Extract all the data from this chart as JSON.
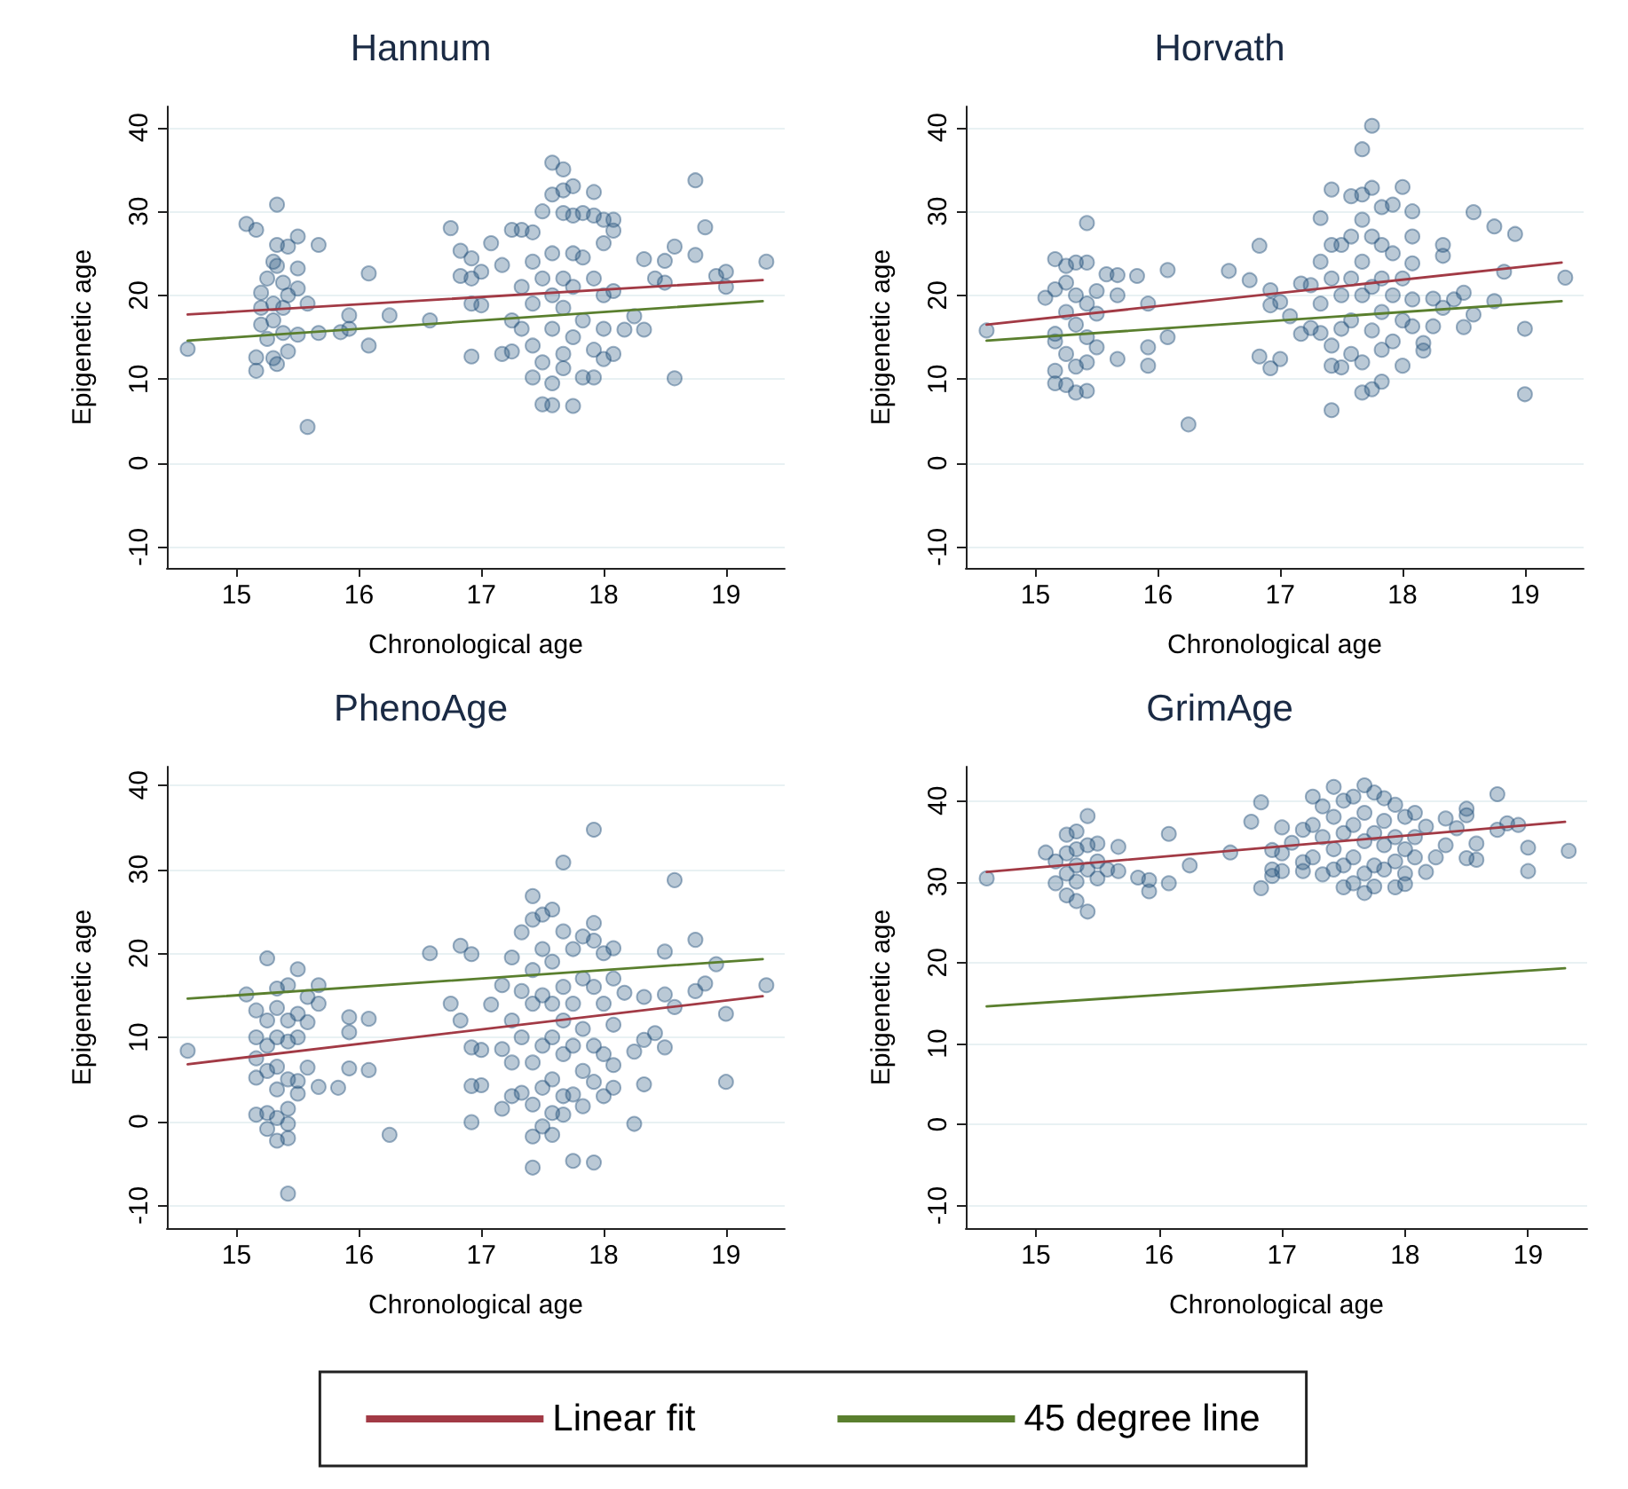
{
  "chart_data": [
    {
      "type": "scatter",
      "title": "Hannum",
      "xlabel": "Chronological age",
      "ylabel": "Epigenetic age",
      "xlim": [
        14.43,
        19.48
      ],
      "xticks": [
        15,
        16,
        17,
        18,
        19
      ],
      "ylim": [
        -12.5,
        42.5
      ],
      "yticks": [
        -10,
        0,
        10,
        20,
        30,
        40
      ],
      "grid": "y",
      "line_style": "solid",
      "series": [
        {
          "marker": "circle",
          "color": "#1f4e79",
          "x": [
            14.6,
            15.08,
            15.16,
            15.16,
            15.16,
            15.2,
            15.2,
            15.2,
            15.25,
            15.25,
            15.3,
            15.3,
            15.3,
            15.3,
            15.33,
            15.33,
            15.33,
            15.33,
            15.38,
            15.38,
            15.38,
            15.42,
            15.42,
            15.42,
            15.5,
            15.5,
            15.5,
            15.5,
            15.58,
            15.58,
            15.67,
            15.67,
            15.85,
            15.92,
            15.92,
            16.08,
            16.08,
            16.25,
            16.58,
            16.75,
            16.83,
            16.83,
            16.92,
            16.92,
            16.92,
            16.92,
            17.0,
            17.0,
            17.08,
            17.17,
            17.17,
            17.25,
            17.25,
            17.25,
            17.33,
            17.33,
            17.33,
            17.42,
            17.42,
            17.42,
            17.42,
            17.42,
            17.5,
            17.5,
            17.5,
            17.5,
            17.58,
            17.58,
            17.58,
            17.58,
            17.58,
            17.58,
            17.58,
            17.67,
            17.67,
            17.67,
            17.67,
            17.67,
            17.67,
            17.67,
            17.75,
            17.75,
            17.75,
            17.75,
            17.75,
            17.75,
            17.83,
            17.83,
            17.83,
            17.83,
            17.92,
            17.92,
            17.92,
            17.92,
            17.92,
            18.0,
            18.0,
            18.0,
            18.0,
            18.0,
            18.08,
            18.08,
            18.08,
            18.08,
            18.17,
            18.25,
            18.33,
            18.33,
            18.42,
            18.5,
            18.5,
            18.58,
            18.58,
            18.75,
            18.75,
            18.83,
            18.92,
            19.0,
            19.0,
            19.33
          ],
          "values": [
            13.6,
            28.5,
            27.8,
            11,
            12.6,
            20.3,
            18.5,
            16.5,
            22,
            14.8,
            24,
            19,
            17,
            12.5,
            30.8,
            26,
            23.5,
            11.8,
            21.5,
            18.5,
            15.5,
            25.8,
            20,
            13.3,
            27,
            23.2,
            20.8,
            15.3,
            4.3,
            19,
            26,
            15.5,
            15.6,
            17.6,
            16,
            22.6,
            14,
            17.6,
            17,
            28,
            25.3,
            22.3,
            24.4,
            22,
            12.7,
            19,
            22.8,
            18.8,
            26.2,
            13,
            23.6,
            27.8,
            17,
            13.3,
            27.8,
            21,
            16,
            27.5,
            24,
            19,
            14,
            10.2,
            30,
            22,
            7,
            12,
            35.8,
            32,
            25,
            20,
            16,
            9.5,
            6.9,
            35,
            32.5,
            29.8,
            22,
            18.5,
            13,
            11.3,
            33,
            29.5,
            25,
            21,
            15,
            6.8,
            29.8,
            24.5,
            17,
            10.2,
            32.3,
            29.5,
            22,
            13.5,
            10.2,
            29,
            26.2,
            20,
            16,
            12.4,
            29,
            27.7,
            20.5,
            13,
            15.9,
            17.5,
            24.3,
            15.9,
            22,
            24.1,
            21.5,
            25.8,
            10.1,
            33.7,
            24.8,
            28.1,
            22.3,
            22.8,
            21,
            24
          ]
        },
        {
          "type": "line",
          "marker": "none",
          "color": "#a23a45",
          "x": [
            14.6,
            19.3
          ],
          "values": [
            17.7,
            21.8
          ]
        },
        {
          "type": "line",
          "marker": "none",
          "color": "#5a7f2e",
          "x": [
            14.6,
            19.3
          ],
          "values": [
            14.6,
            19.3
          ]
        }
      ]
    },
    {
      "type": "scatter",
      "title": "Horvath",
      "xlabel": "Chronological age",
      "ylabel": "Epigenetic age",
      "xlim": [
        14.43,
        19.48
      ],
      "xticks": [
        15,
        16,
        17,
        18,
        19
      ],
      "ylim": [
        -12.5,
        42.5
      ],
      "yticks": [
        -10,
        0,
        10,
        20,
        30,
        40
      ],
      "grid": "y",
      "line_style": "solid",
      "series": [
        {
          "marker": "circle",
          "color": "#1f4e79",
          "x": [
            14.6,
            15.08,
            15.16,
            15.16,
            15.16,
            15.16,
            15.16,
            15.16,
            15.25,
            15.25,
            15.25,
            15.25,
            15.25,
            15.33,
            15.33,
            15.33,
            15.33,
            15.33,
            15.42,
            15.42,
            15.42,
            15.42,
            15.42,
            15.42,
            15.5,
            15.5,
            15.5,
            15.58,
            15.67,
            15.67,
            15.67,
            15.83,
            15.92,
            15.92,
            15.92,
            16.08,
            16.08,
            16.25,
            16.58,
            16.75,
            16.83,
            16.83,
            16.92,
            16.92,
            16.92,
            17.0,
            17.0,
            17.08,
            17.17,
            17.17,
            17.25,
            17.25,
            17.33,
            17.33,
            17.33,
            17.33,
            17.42,
            17.42,
            17.42,
            17.42,
            17.42,
            17.42,
            17.5,
            17.5,
            17.5,
            17.5,
            17.58,
            17.58,
            17.58,
            17.58,
            17.58,
            17.67,
            17.67,
            17.67,
            17.67,
            17.67,
            17.67,
            17.67,
            17.75,
            17.75,
            17.75,
            17.75,
            17.75,
            17.75,
            17.83,
            17.83,
            17.83,
            17.83,
            17.83,
            17.83,
            17.92,
            17.92,
            17.92,
            17.92,
            18.0,
            18.0,
            18.0,
            18.0,
            18.08,
            18.08,
            18.08,
            18.08,
            18.08,
            18.17,
            18.17,
            18.25,
            18.25,
            18.33,
            18.33,
            18.33,
            18.42,
            18.5,
            18.5,
            18.58,
            18.58,
            18.75,
            18.75,
            18.83,
            18.92,
            19.0,
            19.0,
            19.33
          ],
          "values": [
            15.8,
            19.7,
            24.3,
            20.7,
            15.4,
            14.5,
            11,
            9.5,
            23.5,
            21.5,
            18,
            13,
            9.3,
            23.9,
            20,
            16.5,
            11.5,
            8.4,
            28.6,
            23.9,
            19,
            15,
            12,
            8.6,
            20.5,
            17.8,
            13.8,
            22.5,
            22.4,
            20,
            12.4,
            22.3,
            19,
            13.8,
            11.6,
            23,
            15,
            4.6,
            22.9,
            21.8,
            25.9,
            12.7,
            20.6,
            18.8,
            11.3,
            19.2,
            12.4,
            17.5,
            21.4,
            15.4,
            21.2,
            16.1,
            29.2,
            24,
            19,
            15.5,
            32.6,
            26,
            22,
            14,
            11.6,
            6.3,
            26,
            20,
            16,
            11.4,
            31.8,
            27,
            22,
            17,
            13,
            37.4,
            32,
            29,
            24,
            20,
            12,
            8.4,
            40.2,
            32.8,
            27,
            21,
            15.8,
            8.8,
            30.5,
            26,
            22,
            18,
            13.5,
            9.7,
            30.8,
            25,
            20,
            14.5,
            32.9,
            22,
            17,
            11.6,
            30,
            27,
            23.8,
            19.5,
            16.3,
            14.3,
            13.4,
            19.6,
            16.3,
            26,
            24.7,
            18.5,
            19.5,
            20.3,
            16.2,
            29.9,
            17.7,
            28.2,
            19.3,
            22.8,
            27.3,
            16,
            8.2,
            22.1
          ]
        },
        {
          "type": "line",
          "marker": "none",
          "color": "#a23a45",
          "x": [
            14.6,
            19.3
          ],
          "values": [
            16.5,
            23.9
          ]
        },
        {
          "type": "line",
          "marker": "none",
          "color": "#5a7f2e",
          "x": [
            14.6,
            19.3
          ],
          "values": [
            14.6,
            19.3
          ]
        }
      ]
    },
    {
      "type": "scatter",
      "title": "PhenoAge",
      "xlabel": "Chronological age",
      "ylabel": "Epigenetic age",
      "xlim": [
        14.43,
        19.48
      ],
      "xticks": [
        15,
        16,
        17,
        18,
        19
      ],
      "ylim": [
        -12.7,
        42.2
      ],
      "yticks": [
        -10,
        0,
        10,
        20,
        30,
        40
      ],
      "grid": "y",
      "line_style": "solid",
      "series": [
        {
          "marker": "circle",
          "color": "#1f4e79",
          "x": [
            14.6,
            15.08,
            15.16,
            15.16,
            15.16,
            15.16,
            15.16,
            15.25,
            15.25,
            15.25,
            15.25,
            15.25,
            15.25,
            15.33,
            15.33,
            15.33,
            15.33,
            15.33,
            15.33,
            15.33,
            15.42,
            15.42,
            15.42,
            15.42,
            15.42,
            15.42,
            15.42,
            15.42,
            15.5,
            15.5,
            15.5,
            15.5,
            15.5,
            15.58,
            15.58,
            15.58,
            15.67,
            15.67,
            15.67,
            15.83,
            15.92,
            15.92,
            15.92,
            16.08,
            16.08,
            16.25,
            16.58,
            16.75,
            16.83,
            16.83,
            16.92,
            16.92,
            16.92,
            16.92,
            17.0,
            17.0,
            17.08,
            17.17,
            17.17,
            17.17,
            17.25,
            17.25,
            17.25,
            17.25,
            17.33,
            17.33,
            17.33,
            17.33,
            17.42,
            17.42,
            17.42,
            17.42,
            17.42,
            17.42,
            17.42,
            17.42,
            17.5,
            17.5,
            17.5,
            17.5,
            17.5,
            17.5,
            17.58,
            17.58,
            17.58,
            17.58,
            17.58,
            17.58,
            17.58,
            17.67,
            17.67,
            17.67,
            17.67,
            17.67,
            17.67,
            17.67,
            17.75,
            17.75,
            17.75,
            17.75,
            17.75,
            17.83,
            17.83,
            17.83,
            17.83,
            17.83,
            17.92,
            17.92,
            17.92,
            17.92,
            17.92,
            17.92,
            17.92,
            18.0,
            18.0,
            18.0,
            18.0,
            18.08,
            18.08,
            18.08,
            18.08,
            18.08,
            18.17,
            18.25,
            18.25,
            18.33,
            18.33,
            18.33,
            18.42,
            18.5,
            18.5,
            18.5,
            18.58,
            18.58,
            18.75,
            18.75,
            18.83,
            18.92,
            19.0,
            19.0,
            19.33
          ],
          "values": [
            8.4,
            15.1,
            13.2,
            10,
            7.5,
            5.2,
            0.8,
            19.4,
            12,
            9,
            6,
            1,
            -0.9,
            15.8,
            13.5,
            10,
            6.5,
            3.8,
            0.4,
            -2.3,
            16.2,
            12,
            9.5,
            5,
            1.5,
            -0.3,
            -2,
            -8.6,
            18.1,
            12.8,
            10,
            4.8,
            3.3,
            14.8,
            11.8,
            6.4,
            16.2,
            14,
            4.1,
            4,
            12.4,
            10.6,
            6.3,
            12.2,
            6.1,
            -1.6,
            20,
            14,
            20.9,
            12,
            19.9,
            8.8,
            4.2,
            -0.1,
            8.5,
            4.3,
            13.9,
            16.2,
            8.6,
            1.5,
            19.5,
            12,
            7,
            3,
            22.5,
            15.5,
            10,
            3.4,
            26.8,
            24,
            18,
            14,
            7,
            2,
            -1.8,
            -5.5,
            24.6,
            20.5,
            15,
            9,
            4,
            -0.6,
            25.2,
            19,
            14,
            10,
            5,
            1,
            -1.6,
            30.8,
            22.6,
            16,
            12,
            8,
            3,
            0.8,
            20.5,
            14,
            9,
            3.2,
            -4.7,
            22,
            17,
            11,
            6,
            1.8,
            34.7,
            23.6,
            21.5,
            16,
            9,
            4.7,
            -4.9,
            20,
            14,
            8,
            3,
            20.6,
            17,
            11.5,
            6.7,
            4,
            15.3,
            8.3,
            -0.3,
            14.8,
            9.7,
            4.4,
            10.5,
            20.2,
            15.1,
            8.8,
            28.7,
            13.6,
            21.6,
            15.5,
            16.4,
            18.7,
            12.8,
            4.7,
            16.2
          ]
        },
        {
          "type": "line",
          "marker": "none",
          "color": "#a23a45",
          "x": [
            14.6,
            19.3
          ],
          "values": [
            6.8,
            14.9
          ]
        },
        {
          "type": "line",
          "marker": "none",
          "color": "#5a7f2e",
          "x": [
            14.6,
            19.3
          ],
          "values": [
            14.6,
            19.3
          ]
        }
      ]
    },
    {
      "type": "scatter",
      "title": "GrimAge",
      "xlabel": "Chronological age",
      "ylabel": "Epigenetic age",
      "xlim": [
        14.43,
        19.48
      ],
      "xticks": [
        15,
        16,
        17,
        18,
        19
      ],
      "ylim": [
        -12.8,
        44.2
      ],
      "yticks": [
        -10,
        0,
        10,
        20,
        30,
        40
      ],
      "grid": "y",
      "legend": "bottom",
      "line_style": "solid",
      "series": [
        {
          "marker": "circle",
          "color": "#1f4e79",
          "x": [
            14.6,
            15.08,
            15.16,
            15.16,
            15.25,
            15.25,
            15.25,
            15.25,
            15.33,
            15.33,
            15.33,
            15.33,
            15.33,
            15.42,
            15.42,
            15.42,
            15.42,
            15.5,
            15.5,
            15.5,
            15.58,
            15.67,
            15.67,
            15.83,
            15.92,
            15.92,
            16.08,
            16.08,
            16.25,
            16.58,
            16.75,
            16.83,
            16.83,
            16.92,
            16.92,
            16.92,
            17.0,
            17.0,
            17.0,
            17.08,
            17.17,
            17.17,
            17.17,
            17.25,
            17.25,
            17.25,
            17.33,
            17.33,
            17.33,
            17.42,
            17.42,
            17.42,
            17.42,
            17.5,
            17.5,
            17.5,
            17.5,
            17.58,
            17.58,
            17.58,
            17.58,
            17.67,
            17.67,
            17.67,
            17.67,
            17.67,
            17.75,
            17.75,
            17.75,
            17.75,
            17.83,
            17.83,
            17.83,
            17.83,
            17.92,
            17.92,
            17.92,
            17.92,
            18.0,
            18.0,
            18.0,
            18.0,
            18.08,
            18.08,
            18.08,
            18.17,
            18.17,
            18.25,
            18.33,
            18.33,
            18.42,
            18.5,
            18.5,
            18.5,
            18.58,
            18.58,
            18.75,
            18.75,
            18.83,
            18.92,
            19.0,
            19.0,
            19.33
          ],
          "values": [
            30.4,
            33.6,
            32.5,
            29.8,
            35.8,
            33.5,
            31,
            28.3,
            36.2,
            34,
            32,
            30,
            27.6,
            38.1,
            34.5,
            31.5,
            26.3,
            34.7,
            32.5,
            30.4,
            31.5,
            34.3,
            31.3,
            30.5,
            30.2,
            28.8,
            35.9,
            29.8,
            32,
            33.6,
            37.4,
            39.8,
            29.2,
            33.9,
            31.5,
            30.7,
            36.7,
            33.5,
            31.3,
            34.8,
            36.4,
            32.4,
            31.3,
            40.5,
            37,
            33,
            39.3,
            35.5,
            30.9,
            41.7,
            38,
            34,
            31.5,
            40,
            36,
            32,
            29.3,
            40.5,
            37,
            33,
            29.8,
            41.9,
            38.5,
            35,
            31,
            28.6,
            41,
            36,
            32,
            29.4,
            40.3,
            37.5,
            34.5,
            31.5,
            39.5,
            35.5,
            32.5,
            29.3,
            38,
            34,
            31,
            29.7,
            38.5,
            35.5,
            33,
            36.8,
            31.2,
            33,
            37.8,
            34.5,
            36.6,
            39,
            38.2,
            32.9,
            34.7,
            32.7,
            40.8,
            36.4,
            37.2,
            37,
            34.2,
            31.3,
            33.8
          ]
        },
        {
          "type": "line",
          "marker": "none",
          "name": "Linear fit",
          "color": "#a23a45",
          "x": [
            14.6,
            19.3
          ],
          "values": [
            31.2,
            37.4
          ]
        },
        {
          "type": "line",
          "marker": "none",
          "name": "45 degree line",
          "color": "#5a7f2e",
          "x": [
            14.6,
            19.3
          ],
          "values": [
            14.6,
            19.3
          ]
        }
      ]
    }
  ]
}
